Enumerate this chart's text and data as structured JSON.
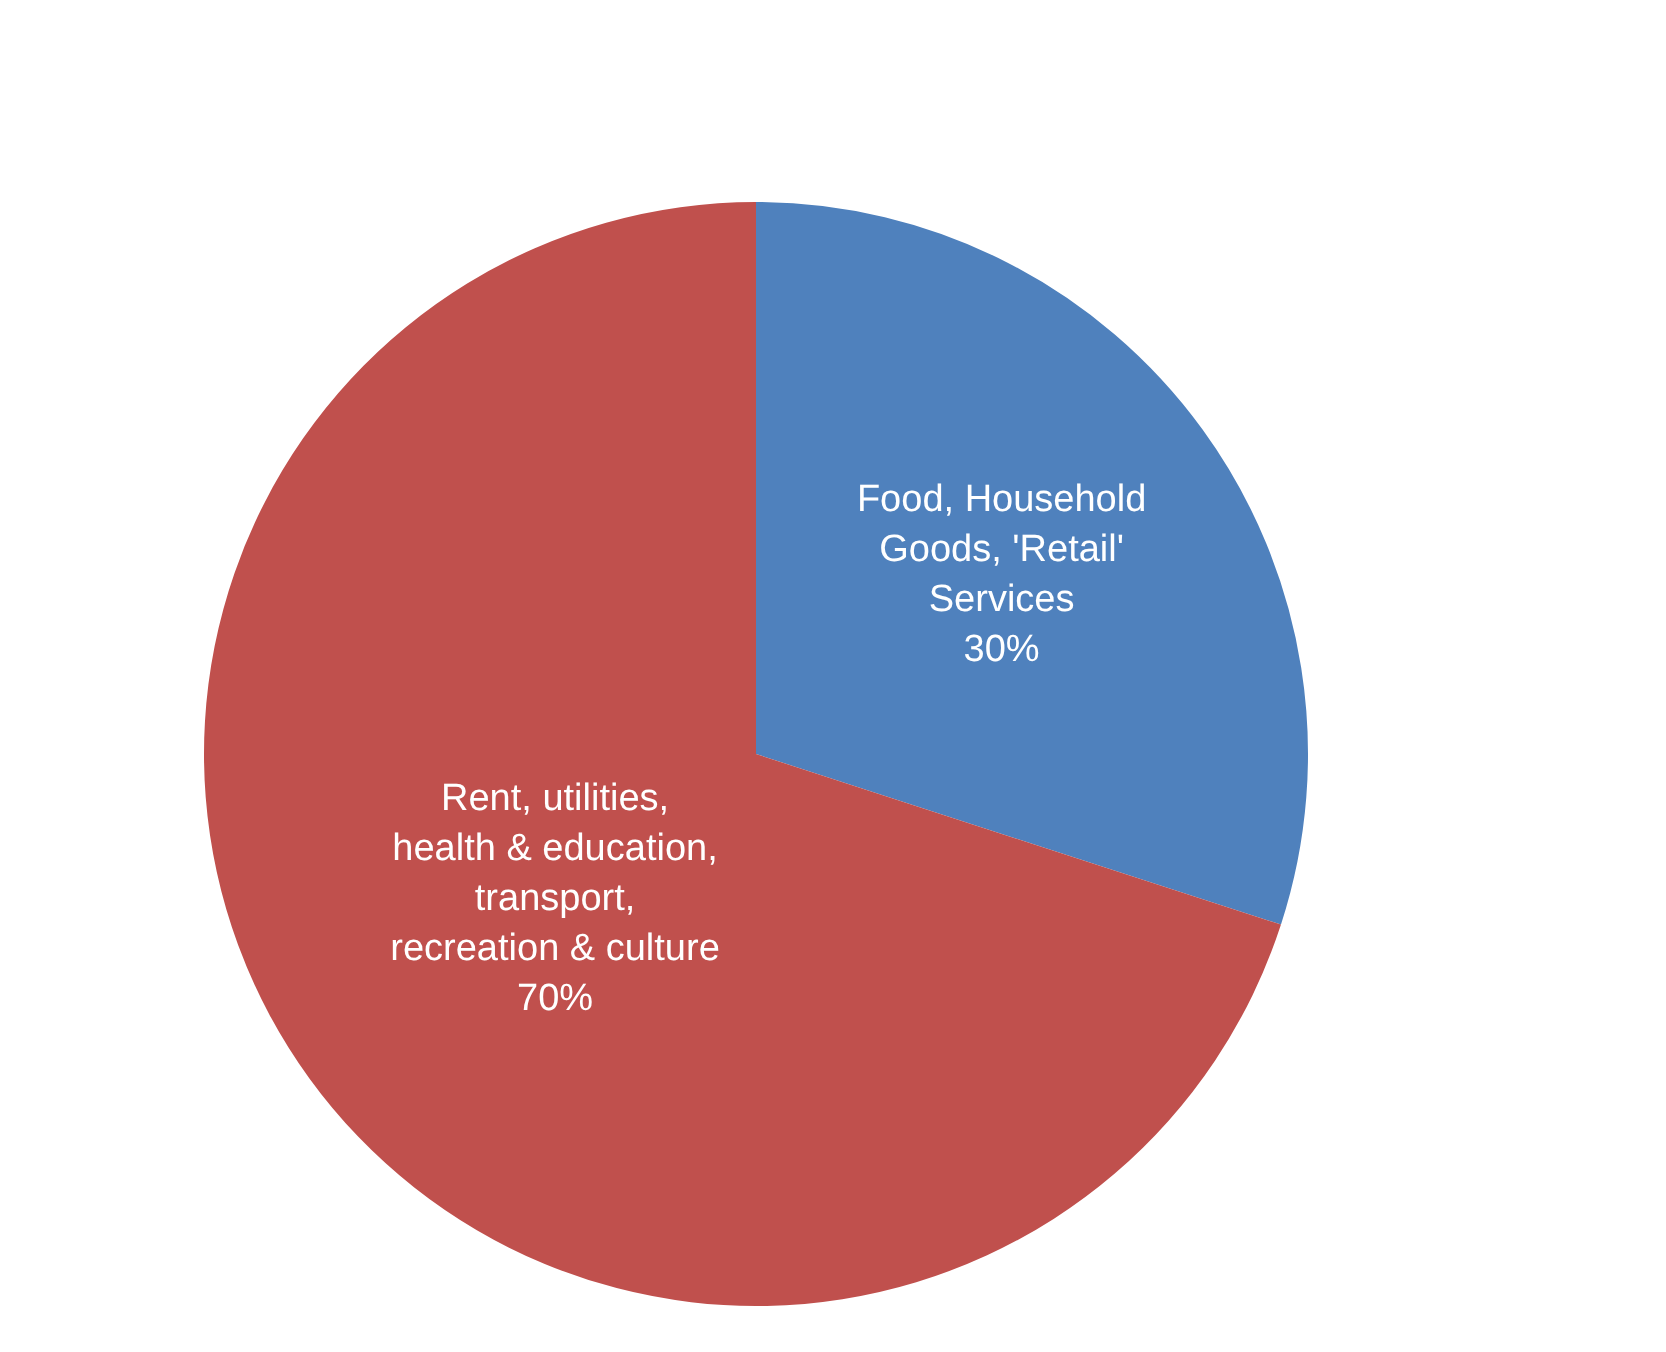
{
  "chart_data": {
    "type": "pie",
    "categories": [
      "Food, Household Goods, 'Retail' Services",
      "Rent, utilities, health & education, transport, recreation & culture"
    ],
    "values": [
      30,
      70
    ],
    "colors": [
      "#4f81bd",
      "#c0504d"
    ],
    "value_labels": [
      "30%",
      "70%"
    ],
    "legend": false
  }
}
